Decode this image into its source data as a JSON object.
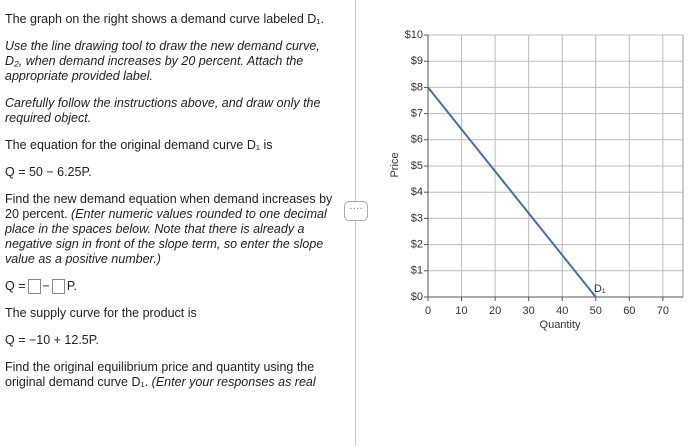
{
  "instructions": {
    "intro": "The graph on the right shows a demand curve labeled D₁.",
    "task": "Use the line drawing tool to draw the new demand curve, D₂, when demand increases by 20 percent. Attach the appropriate provided label.",
    "caution": "Carefully follow the instructions above, and draw only the required object.",
    "equation_intro": "The equation for the original demand curve D₁ is",
    "demand_equation": "Q = 50 − 6.25P.",
    "question": "Find the new demand equation when demand increases by 20 percent.",
    "question_note": "(Enter numeric values rounded to one decimal place in the spaces below. Note that there is already a negative sign in front of the slope term, so enter the slope value as a positive number.)",
    "answer_prefix": "Q =",
    "answer_operator": "−",
    "answer_suffix": "P.",
    "supply_intro": "The supply curve for the product is",
    "supply_equation": "Q = −10 + 12.5P.",
    "equilibrium_question": "Find the original equilibrium price and quantity using the original demand curve D₁.",
    "equilibrium_note": "(Enter your responses as real"
  },
  "chart_data": {
    "type": "line",
    "x_label": "Quantity",
    "y_label": "Price",
    "series": [
      {
        "name": "D₁",
        "color": "#4a6fa5",
        "x": [
          0,
          50
        ],
        "values": [
          8,
          0
        ]
      }
    ],
    "xlim": [
      0,
      76
    ],
    "ylim": [
      0,
      10
    ],
    "xticks": [
      0,
      10,
      20,
      30,
      40,
      50,
      60,
      70
    ],
    "yticks": [
      {
        "value": 0,
        "label": "$0"
      },
      {
        "value": 1,
        "label": "$1"
      },
      {
        "value": 2,
        "label": "$2"
      },
      {
        "value": 3,
        "label": "$3"
      },
      {
        "value": 4,
        "label": "$4"
      },
      {
        "value": 5,
        "label": "$5"
      },
      {
        "value": 6,
        "label": "$6"
      },
      {
        "value": 7,
        "label": "$7"
      },
      {
        "value": 8,
        "label": "$8"
      },
      {
        "value": 9,
        "label": "$9"
      },
      {
        "value": 10,
        "label": "$10"
      }
    ],
    "grid": true
  }
}
